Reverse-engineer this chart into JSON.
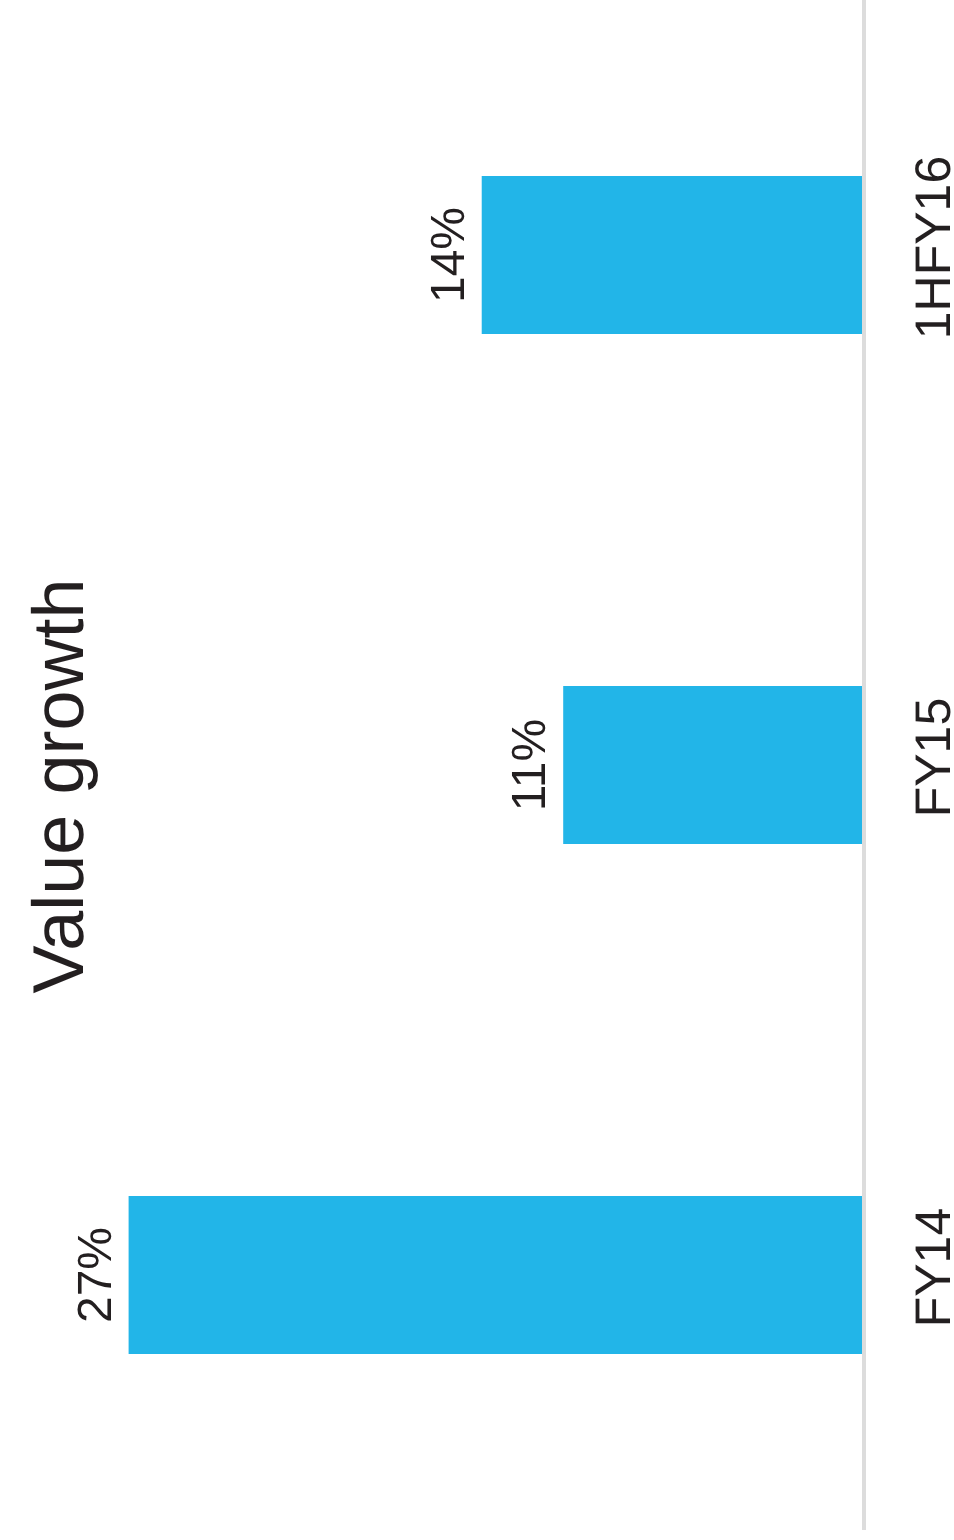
{
  "chart_data": {
    "type": "bar",
    "orientation": "horizontal",
    "title": "Value growth",
    "categories": [
      "1HFY16",
      "FY15",
      "FY14"
    ],
    "values": [
      14,
      11,
      27
    ],
    "color": "#22b5e8",
    "value_labels": [
      "14%",
      "11%",
      "27%"
    ]
  }
}
